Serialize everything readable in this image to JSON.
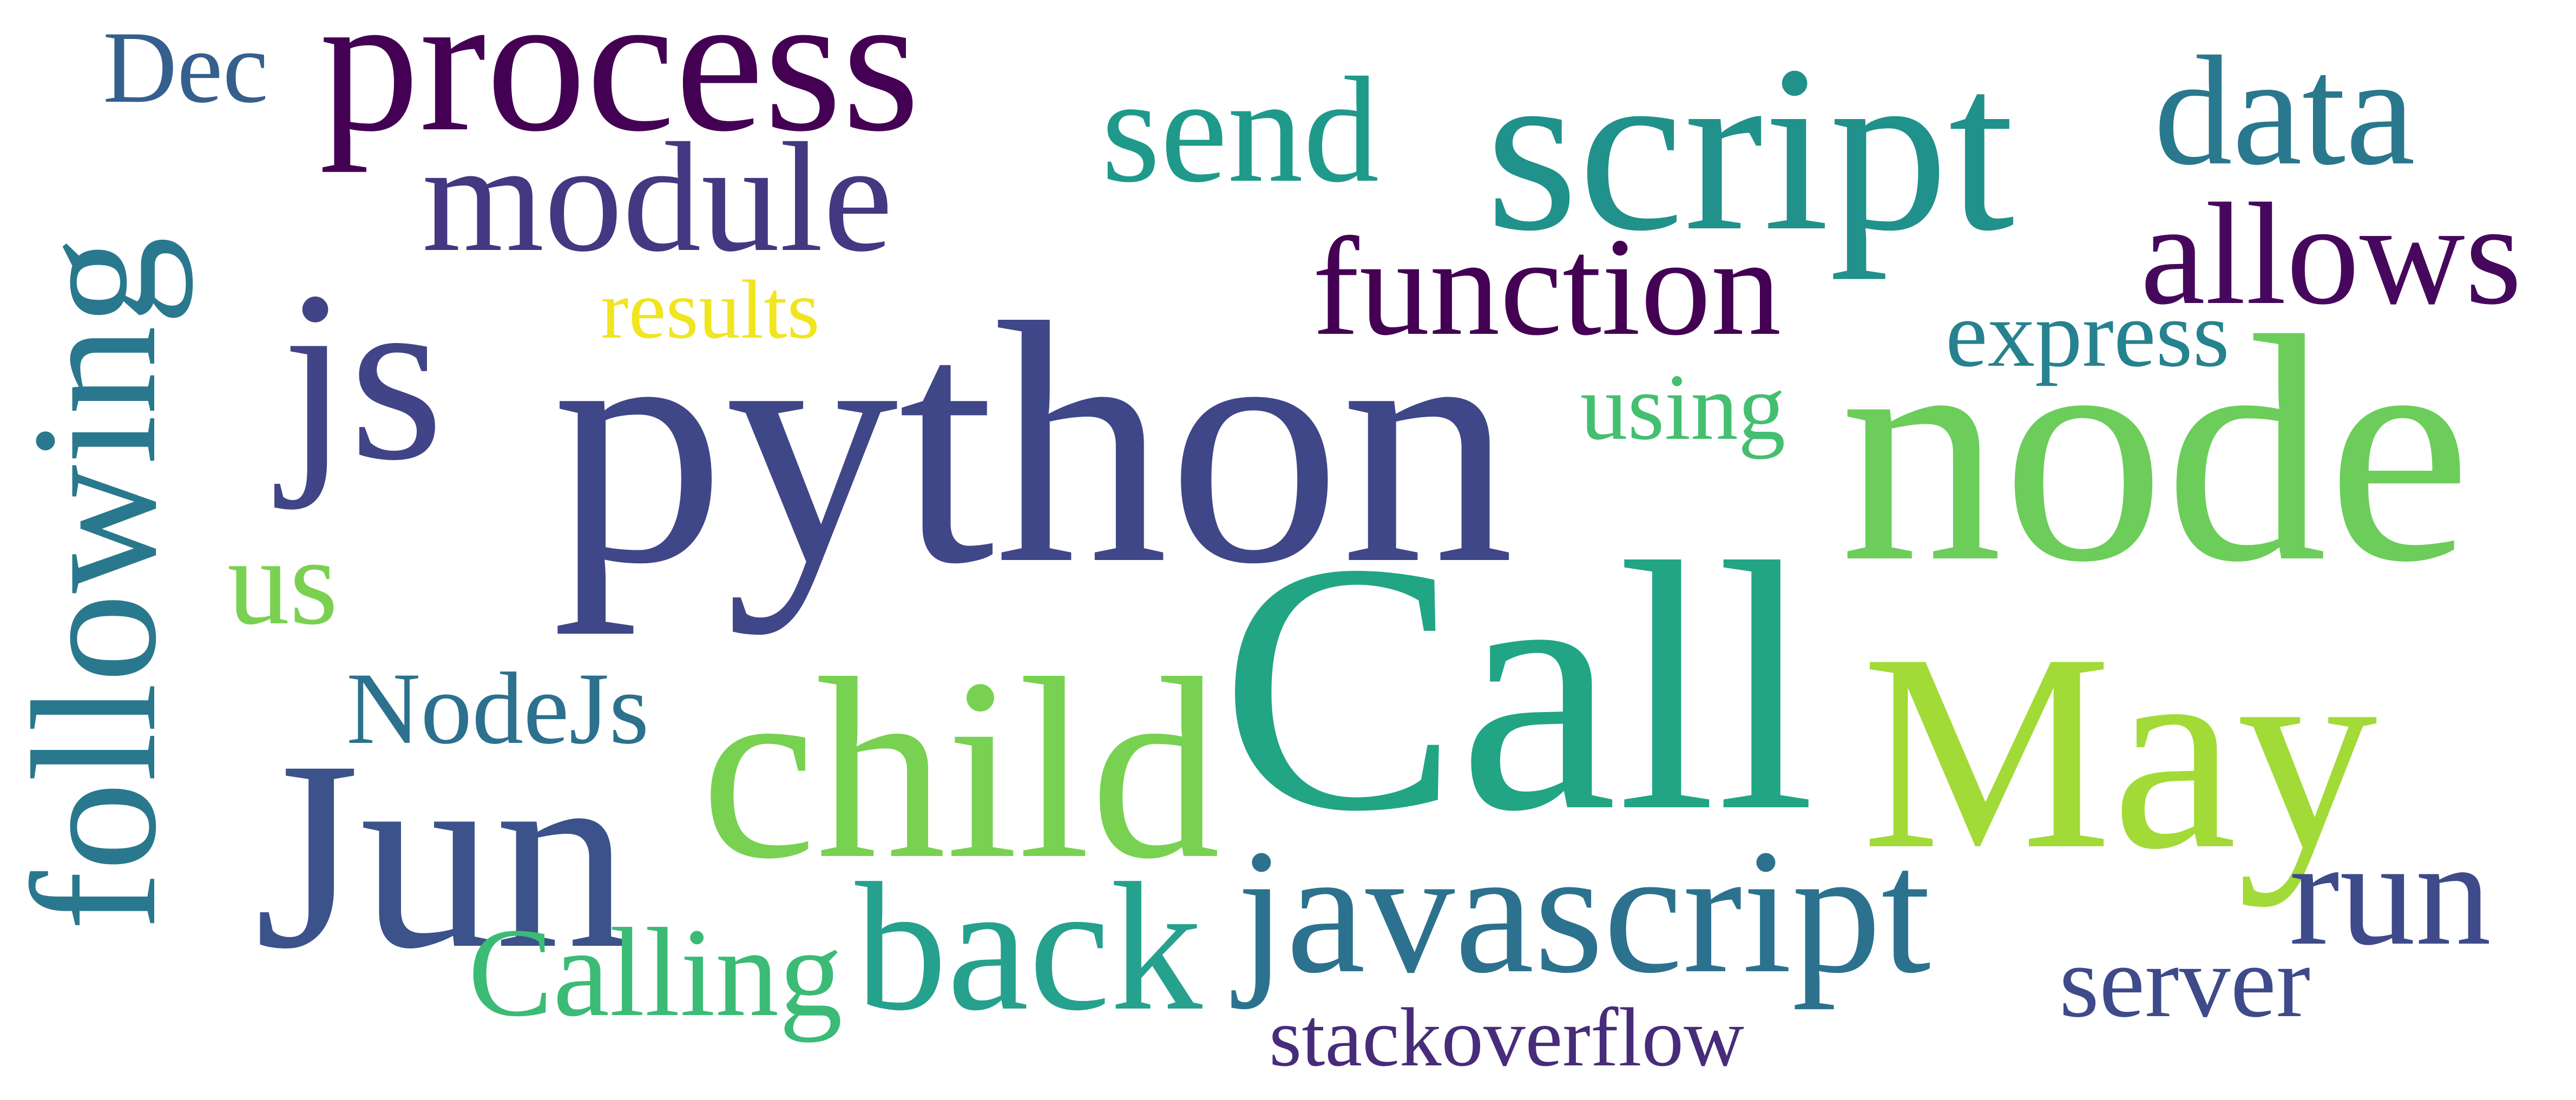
{
  "words": {
    "python": {
      "text": "python",
      "color": "#3f4788"
    },
    "call": {
      "text": "Call",
      "color": "#21a585"
    },
    "node": {
      "text": "node",
      "color": "#6ccd5a"
    },
    "may": {
      "text": "May",
      "color": "#a2da37"
    },
    "child": {
      "text": "child",
      "color": "#78d151"
    },
    "script": {
      "text": "script",
      "color": "#21918c"
    },
    "js": {
      "text": "js",
      "color": "#414487"
    },
    "jun": {
      "text": "Jun",
      "color": "#3b528b"
    },
    "process": {
      "text": "process",
      "color": "#440154"
    },
    "following": {
      "text": "following",
      "color": "#2a788e"
    },
    "javascript": {
      "text": "javascript",
      "color": "#2c728e"
    },
    "back": {
      "text": "back",
      "color": "#25a18e"
    },
    "module": {
      "text": "module",
      "color": "#453781"
    },
    "function": {
      "text": "function",
      "color": "#440154"
    },
    "data": {
      "text": "data",
      "color": "#2a788e"
    },
    "allows": {
      "text": "allows",
      "color": "#46085c"
    },
    "send": {
      "text": "send",
      "color": "#1f9a8a"
    },
    "run": {
      "text": "run",
      "color": "#3e4a89"
    },
    "express": {
      "text": "express",
      "color": "#26828e"
    },
    "calling": {
      "text": "Calling",
      "color": "#3bbb75"
    },
    "nodejs": {
      "text": "NodeJs",
      "color": "#2c718e"
    },
    "using": {
      "text": "using",
      "color": "#44bf70"
    },
    "us": {
      "text": "us",
      "color": "#7ad151"
    },
    "dec": {
      "text": "Dec",
      "color": "#355f8d"
    },
    "results": {
      "text": "results",
      "color": "#f0e51f"
    },
    "server": {
      "text": "server",
      "color": "#3e4a89"
    },
    "stackoverflow": {
      "text": "stackoverflow",
      "color": "#472c7a"
    }
  }
}
